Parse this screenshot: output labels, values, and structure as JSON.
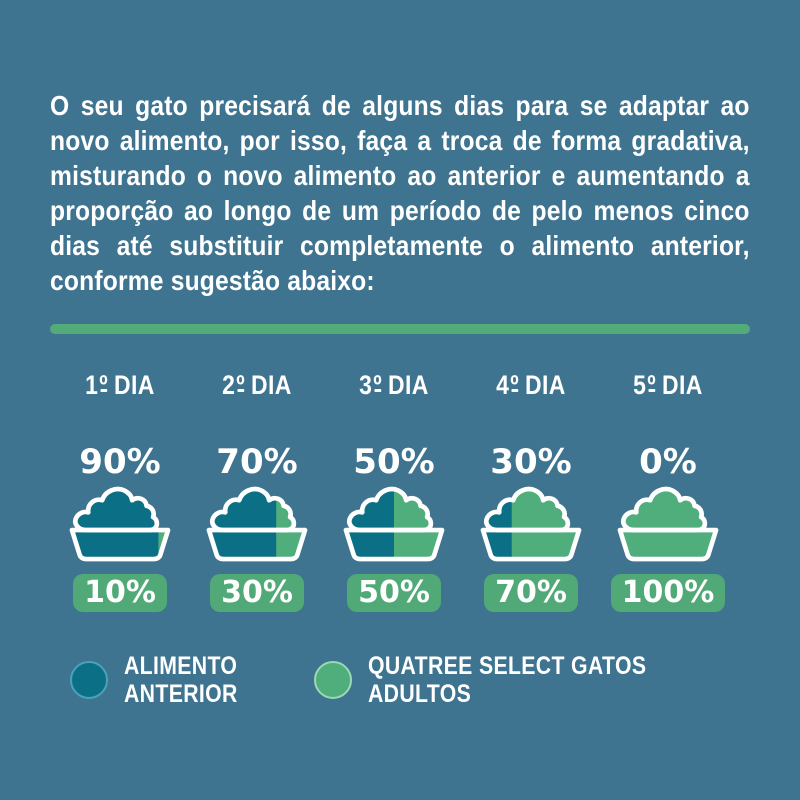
{
  "colors": {
    "background": "#3F7490",
    "previous_food": "#0B7086",
    "new_food": "#4FAE7C",
    "divider_green": "#52AB79",
    "badge_green": "#50A977",
    "legend_teal_ring": "#4BA2B8",
    "legend_green_ring": "#9BD8B5",
    "bowl_outline": "#FFFFFF",
    "text_white": "#FFFFFF"
  },
  "intro": {
    "text": "O seu gato precisará de alguns dias para se adaptar ao novo alimento, por isso, faça a troca de forma gradativa, misturando o novo alimento ao anterior e aumentando a proporção ao longo de um período de pelo menos cinco dias até substituir completamente o alimento anterior, conforme sugestão abaixo:"
  },
  "days": [
    {
      "day_num": "1",
      "ordinal": "º",
      "day_word": "DIA",
      "previous_pct_label": "90%",
      "new_pct_label": "10%",
      "previous_value": 90,
      "new_value": 10
    },
    {
      "day_num": "2",
      "ordinal": "º",
      "day_word": "DIA",
      "previous_pct_label": "70%",
      "new_pct_label": "30%",
      "previous_value": 70,
      "new_value": 30
    },
    {
      "day_num": "3",
      "ordinal": "º",
      "day_word": "DIA",
      "previous_pct_label": "50%",
      "new_pct_label": "50%",
      "previous_value": 50,
      "new_value": 50
    },
    {
      "day_num": "4",
      "ordinal": "º",
      "day_word": "DIA",
      "previous_pct_label": "30%",
      "new_pct_label": "70%",
      "previous_value": 30,
      "new_value": 70
    },
    {
      "day_num": "5",
      "ordinal": "º",
      "day_word": "DIA",
      "previous_pct_label": "0%",
      "new_pct_label": "100%",
      "previous_value": 0,
      "new_value": 100
    }
  ],
  "legend": {
    "items": [
      {
        "name": "previous-food",
        "color_key": "previous_food",
        "ring_key": "legend_teal_ring",
        "lines": [
          "ALIMENTO",
          "ANTERIOR"
        ]
      },
      {
        "name": "new-food",
        "color_key": "new_food",
        "ring_key": "legend_green_ring",
        "lines": [
          "QUATREE SELECT GATOS",
          "ADULTOS"
        ]
      }
    ]
  },
  "chart_data": {
    "type": "bar",
    "subtype": "proportion-icons",
    "categories": [
      "1º DIA",
      "2º DIA",
      "3º DIA",
      "4º DIA",
      "5º DIA"
    ],
    "series": [
      {
        "name": "ALIMENTO ANTERIOR",
        "values": [
          90,
          70,
          50,
          30,
          0
        ],
        "color": "#0B7086"
      },
      {
        "name": "QUATREE SELECT GATOS ADULTOS",
        "values": [
          10,
          30,
          50,
          70,
          100
        ],
        "color": "#4FAE7C"
      }
    ],
    "unit": "%",
    "legend_position": "bottom",
    "grid": false
  }
}
